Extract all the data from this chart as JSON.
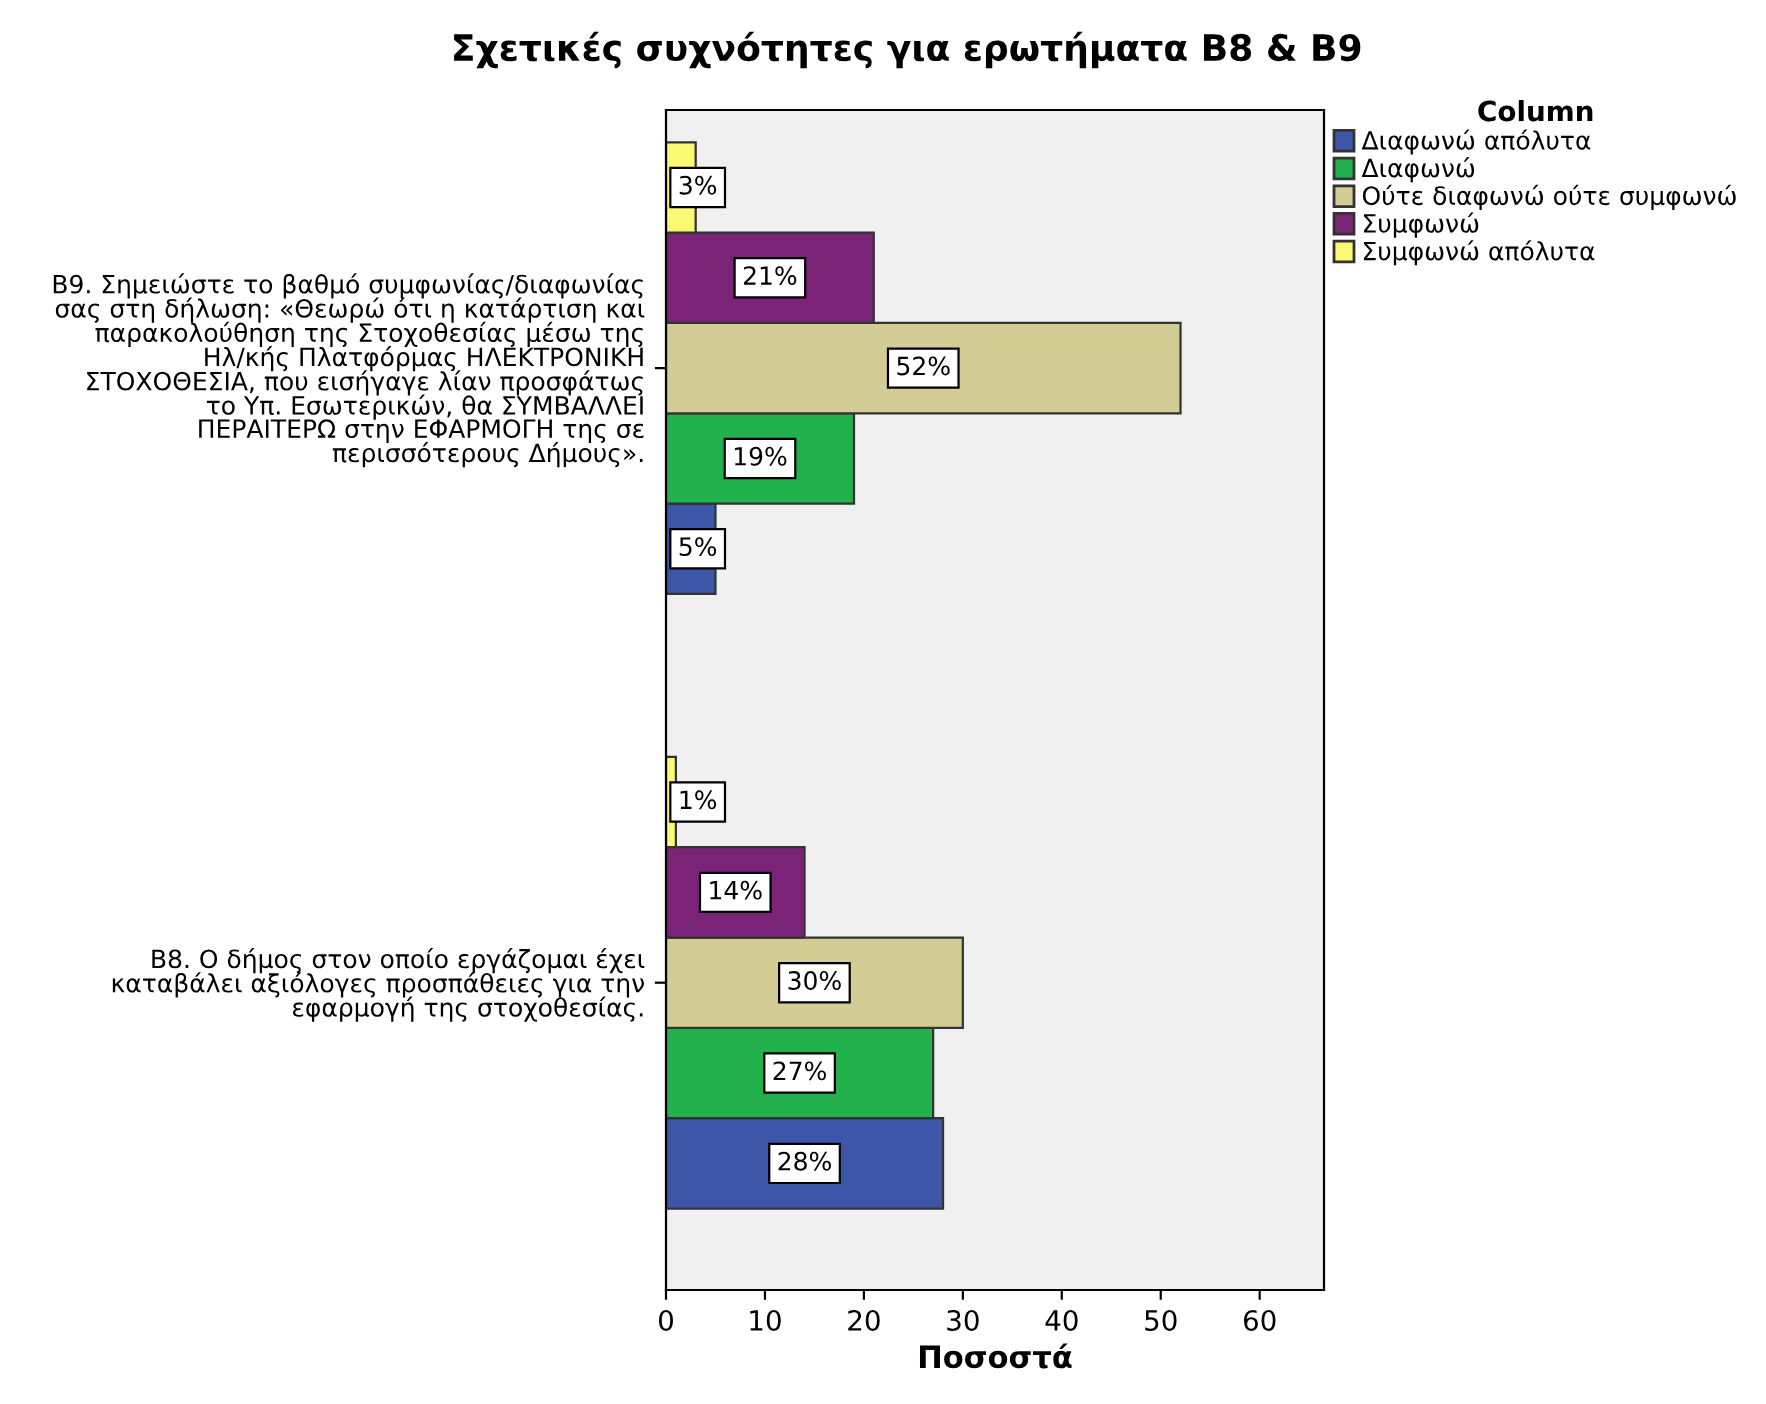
{
  "chart_data": {
    "type": "bar",
    "orientation": "horizontal",
    "title": "Σχετικές συχνότητες για ερωτήματα Β8 & Β9",
    "xlabel": "Ποσοστά",
    "legend_title": "Column",
    "legend": "right",
    "grid": false,
    "categories": [
      "Β9. Σημειώστε το βαθμό συμφωνίας/διαφωνίας\nσας στη δήλωση: «Θεωρώ ότι η κατάρτιση και\nπαρακολούθηση της Στοχοθεσίας μέσω της\nΗλ/κής Πλατφόρμας ΗΛΕΚΤΡΟΝΙΚΗ\nΣΤΟΧΟΘΕΣΙΑ, που εισήγαγε λίαν προσφάτως\nτο Υπ. Εσωτερικών, θα ΣΥΜΒΑΛΛΕΙ\nΠΕΡΑΙΤΕΡΩ στην ΕΦΑΡΜΟΓΗ της σε\nπερισσότερους Δήμους».",
      "Β8. Ο δήμος στον οποίο εργάζομαι έχει\nκαταβάλει αξιόλογες προσπάθειες για την\nεφαρμογή της στοχοθεσίας."
    ],
    "xlim": [
      0,
      66.5
    ],
    "xticks": [
      0,
      10,
      20,
      30,
      40,
      50,
      60
    ],
    "series": [
      {
        "name": "Διαφωνώ απόλυτα",
        "color": "#3d56a8",
        "values": [
          5,
          28
        ],
        "value_labels": [
          "5%",
          "28%"
        ]
      },
      {
        "name": "Διαφωνώ",
        "color": "#22b14c",
        "values": [
          19,
          27
        ],
        "value_labels": [
          "19%",
          "27%"
        ]
      },
      {
        "name": "Ούτε διαφωνώ ούτε συμφωνώ",
        "color": "#d3cd95",
        "values": [
          52,
          30
        ],
        "value_labels": [
          "52%",
          "30%"
        ]
      },
      {
        "name": "Συμφωνώ",
        "color": "#7b2376",
        "values": [
          21,
          14
        ],
        "value_labels": [
          "21%",
          "14%"
        ]
      },
      {
        "name": "Συμφωνώ απόλυτα",
        "color": "#fbf873",
        "values": [
          3,
          1
        ],
        "value_labels": [
          "3%",
          "1%"
        ]
      }
    ]
  }
}
